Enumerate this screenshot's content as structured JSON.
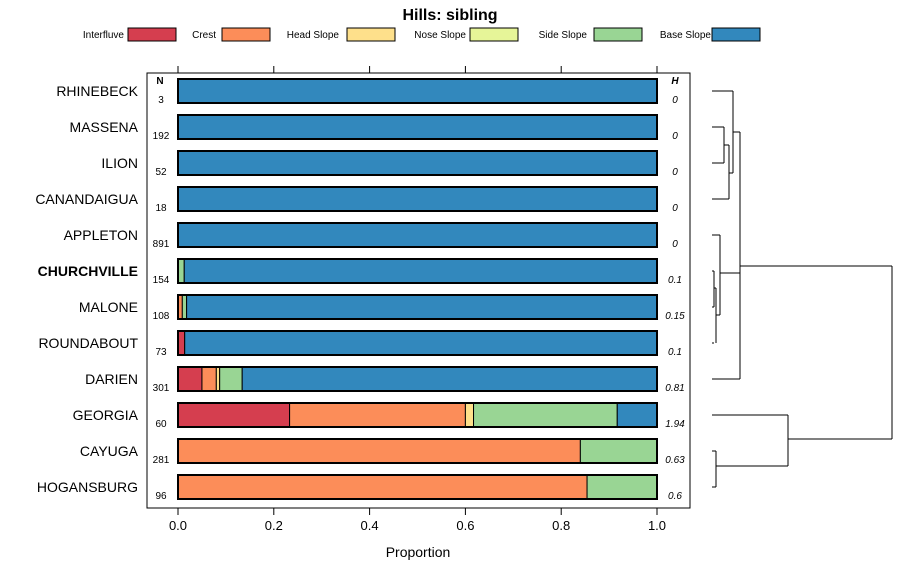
{
  "chart_data": {
    "type": "bar",
    "orientation": "horizontal",
    "stacked": true,
    "title": "Hills: sibling",
    "xlabel": "Proportion",
    "ylabel": "",
    "xlim": [
      0,
      1
    ],
    "x_ticks": [
      "0.0",
      "0.2",
      "0.4",
      "0.6",
      "0.8",
      "1.0"
    ],
    "n_header": "N",
    "h_header": "H",
    "legend_position": "top",
    "series": [
      {
        "name": "Interfluve",
        "color": "#D53E4F"
      },
      {
        "name": "Crest",
        "color": "#FC8D59"
      },
      {
        "name": "Head Slope",
        "color": "#FEE08B"
      },
      {
        "name": "Nose Slope",
        "color": "#E6F598"
      },
      {
        "name": "Side Slope",
        "color": "#99D594"
      },
      {
        "name": "Base Slope",
        "color": "#3288BD"
      }
    ],
    "rows": [
      {
        "label": "RHINEBECK",
        "n": "3",
        "h": "0",
        "bold": false,
        "values": [
          0,
          0,
          0,
          0,
          0,
          1.0
        ]
      },
      {
        "label": "MASSENA",
        "n": "192",
        "h": "0",
        "bold": false,
        "values": [
          0,
          0,
          0,
          0,
          0,
          1.0
        ]
      },
      {
        "label": "ILION",
        "n": "52",
        "h": "0",
        "bold": false,
        "values": [
          0,
          0,
          0,
          0,
          0,
          1.0
        ]
      },
      {
        "label": "CANANDAIGUA",
        "n": "18",
        "h": "0",
        "bold": false,
        "values": [
          0,
          0,
          0,
          0,
          0,
          1.0
        ]
      },
      {
        "label": "APPLETON",
        "n": "891",
        "h": "0",
        "bold": false,
        "values": [
          0,
          0,
          0,
          0,
          0,
          1.0
        ]
      },
      {
        "label": "CHURCHVILLE",
        "n": "154",
        "h": "0.1",
        "bold": true,
        "values": [
          0,
          0,
          0,
          0,
          0.013,
          0.987
        ]
      },
      {
        "label": "MALONE",
        "n": "108",
        "h": "0.15",
        "bold": false,
        "values": [
          0,
          0.009,
          0,
          0,
          0.009,
          0.982
        ]
      },
      {
        "label": "ROUNDABOUT",
        "n": "73",
        "h": "0.1",
        "bold": false,
        "values": [
          0.014,
          0,
          0,
          0,
          0,
          0.986
        ]
      },
      {
        "label": "DARIEN",
        "n": "301",
        "h": "0.81",
        "bold": false,
        "values": [
          0.05,
          0.03,
          0.007,
          0,
          0.047,
          0.866
        ]
      },
      {
        "label": "GEORGIA",
        "n": "60",
        "h": "1.94",
        "bold": false,
        "values": [
          0.233,
          0.367,
          0.017,
          0,
          0.3,
          0.083
        ]
      },
      {
        "label": "CAYUGA",
        "n": "281",
        "h": "0.63",
        "bold": false,
        "values": [
          0,
          0.84,
          0,
          0,
          0.16,
          0
        ]
      },
      {
        "label": "HOGANSBURG",
        "n": "96",
        "h": "0.6",
        "bold": false,
        "values": [
          0,
          0.854,
          0,
          0,
          0.146,
          0
        ]
      }
    ]
  }
}
